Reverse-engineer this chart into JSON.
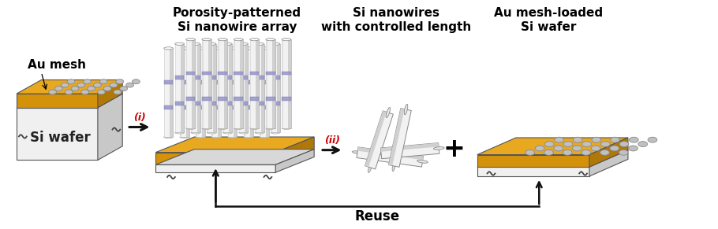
{
  "fig_width": 9.1,
  "fig_height": 2.91,
  "dpi": 100,
  "bg_color": "#ffffff",
  "gold_color": "#D4920A",
  "gold_top_color": "#E8A820",
  "gold_side_color": "#B07808",
  "wafer_color": "#F0F0F0",
  "wafer_top_color": "#D8D8D8",
  "wafer_side_color": "#C8C8C8",
  "wire_color": "#F2F2F2",
  "wire_shade": "#D0D0D0",
  "band_color": "#9999CC",
  "hole_color": "#C0C0C0",
  "arrow_color": "#111111",
  "label_au_mesh": "Au mesh",
  "label_si_wafer": "Si wafer",
  "label_porosity": "Porosity-patterned\nSi nanowire array",
  "label_sinw": "Si nanowires\nwith controlled length",
  "label_au_loaded": "Au mesh-loaded\nSi wafer",
  "label_reuse": "Reuse",
  "label_i": "(i)",
  "label_ii": "(ii)",
  "label_fontsize": 11,
  "small_fontsize": 9,
  "font_weight": "bold"
}
